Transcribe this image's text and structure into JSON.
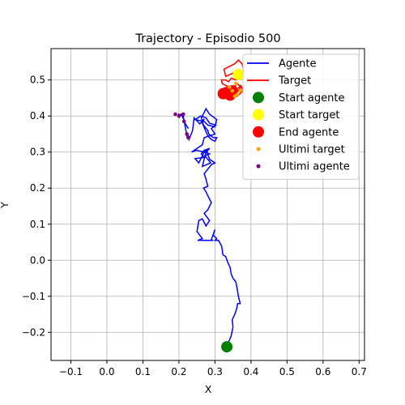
{
  "chart_data": {
    "type": "line",
    "title": "Trajectory - Episodio 500",
    "xlabel": "X",
    "ylabel": "Y",
    "xlim": [
      -0.155,
      0.715
    ],
    "ylim": [
      -0.278,
      0.587
    ],
    "xticks": [
      -0.1,
      0.0,
      0.1,
      0.2,
      0.3,
      0.4,
      0.5,
      0.6,
      0.7
    ],
    "xtick_labels": [
      "−0.1",
      "0.0",
      "0.1",
      "0.2",
      "0.3",
      "0.4",
      "0.5",
      "0.6",
      "0.7"
    ],
    "yticks": [
      -0.2,
      -0.1,
      0.0,
      0.1,
      0.2,
      0.3,
      0.4,
      0.5
    ],
    "ytick_labels": [
      "−0.2",
      "−0.1",
      "0.0",
      "0.1",
      "0.2",
      "0.3",
      "0.4",
      "0.5"
    ],
    "grid": true,
    "legend_position": "top-right",
    "series": [
      {
        "name": "Agente",
        "kind": "line",
        "color": "#0000ff",
        "x": [
          0.333,
          0.345,
          0.35,
          0.348,
          0.355,
          0.36,
          0.363,
          0.37,
          0.365,
          0.362,
          0.358,
          0.35,
          0.345,
          0.342,
          0.335,
          0.33,
          0.322,
          0.32,
          0.318,
          0.31,
          0.3,
          0.305,
          0.295,
          0.3,
          0.29,
          0.295,
          0.27,
          0.252,
          0.265,
          0.25,
          0.255,
          0.265,
          0.275,
          0.285,
          0.27,
          0.28,
          0.29,
          0.282,
          0.275,
          0.268,
          0.28,
          0.275,
          0.27,
          0.29,
          0.3,
          0.285,
          0.278,
          0.282,
          0.27,
          0.285,
          0.272,
          0.288,
          0.265,
          0.275,
          0.285,
          0.27,
          0.262,
          0.27,
          0.245,
          0.255,
          0.27,
          0.248,
          0.235,
          0.25,
          0.265,
          0.27,
          0.3,
          0.29,
          0.302,
          0.285,
          0.275,
          0.26,
          0.245,
          0.27,
          0.28,
          0.3,
          0.305,
          0.285,
          0.275,
          0.27,
          0.262,
          0.268,
          0.28,
          0.283,
          0.295,
          0.305,
          0.3,
          0.29,
          0.28,
          0.265,
          0.27,
          0.258,
          0.242,
          0.238,
          0.23,
          0.228,
          0.226,
          0.224,
          0.222,
          0.214,
          0.206,
          0.202,
          0.2,
          0.212,
          0.214,
          0.226
        ],
        "y": [
          -0.238,
          -0.21,
          -0.185,
          -0.165,
          -0.15,
          -0.135,
          -0.12,
          -0.12,
          -0.1,
          -0.082,
          -0.06,
          -0.05,
          -0.038,
          -0.02,
          -0.005,
          0.01,
          0.015,
          0.03,
          0.04,
          0.055,
          0.055,
          0.06,
          0.07,
          0.085,
          0.057,
          0.055,
          0.055,
          0.055,
          0.06,
          0.08,
          0.11,
          0.115,
          0.095,
          0.11,
          0.13,
          0.14,
          0.16,
          0.175,
          0.19,
          0.2,
          0.205,
          0.225,
          0.24,
          0.265,
          0.27,
          0.28,
          0.3,
          0.31,
          0.3,
          0.295,
          0.29,
          0.27,
          0.26,
          0.3,
          0.31,
          0.305,
          0.295,
          0.285,
          0.282,
          0.27,
          0.3,
          0.305,
          0.3,
          0.31,
          0.32,
          0.34,
          0.35,
          0.365,
          0.375,
          0.38,
          0.395,
          0.4,
          0.39,
          0.385,
          0.375,
          0.37,
          0.39,
          0.405,
          0.42,
          0.41,
          0.395,
          0.375,
          0.36,
          0.35,
          0.34,
          0.34,
          0.33,
          0.335,
          0.345,
          0.38,
          0.392,
          0.378,
          0.395,
          0.36,
          0.34,
          0.335,
          0.345,
          0.35,
          0.345,
          0.39,
          0.405,
          0.398,
          0.405,
          0.4,
          0.385,
          0.365
        ]
      },
      {
        "name": "Target",
        "kind": "line",
        "color": "#ff0000",
        "x": [
          0.365,
          0.352,
          0.33,
          0.325,
          0.345,
          0.355,
          0.365,
          0.375,
          0.38,
          0.37,
          0.358,
          0.345,
          0.338,
          0.33,
          0.318,
          0.32,
          0.34,
          0.352,
          0.362,
          0.372,
          0.378,
          0.362,
          0.35,
          0.355,
          0.34,
          0.328,
          0.318,
          0.325,
          0.34,
          0.352,
          0.362,
          0.372,
          0.36,
          0.348,
          0.34,
          0.348,
          0.36
        ],
        "y": [
          0.515,
          0.52,
          0.51,
          0.53,
          0.54,
          0.545,
          0.555,
          0.545,
          0.525,
          0.505,
          0.5,
          0.505,
          0.495,
          0.5,
          0.5,
          0.49,
          0.48,
          0.47,
          0.475,
          0.485,
          0.47,
          0.455,
          0.46,
          0.47,
          0.465,
          0.45,
          0.455,
          0.47,
          0.48,
          0.48,
          0.49,
          0.48,
          0.465,
          0.47,
          0.46,
          0.45,
          0.455
        ]
      },
      {
        "name": "Start agente",
        "kind": "marker",
        "color": "#008000",
        "x": [
          0.333
        ],
        "y": [
          -0.24
        ]
      },
      {
        "name": "Start target",
        "kind": "marker",
        "color": "#ffff00",
        "x": [
          0.365
        ],
        "y": [
          0.515
        ]
      },
      {
        "name": "End agente",
        "kind": "marker",
        "color": "#ff0000",
        "x": [
          0.332,
          0.323,
          0.348,
          0.342
        ],
        "y": [
          0.465,
          0.462,
          0.47,
          0.458
        ]
      },
      {
        "name": "Ultimi target",
        "kind": "scatter",
        "color": "#ffa500",
        "x": [
          0.355,
          0.362,
          0.37,
          0.348,
          0.34,
          0.358
        ],
        "y": [
          0.455,
          0.46,
          0.47,
          0.47,
          0.48,
          0.49
        ]
      },
      {
        "name": "Ultimi agente",
        "kind": "scatter",
        "color": "#800080",
        "x": [
          0.19,
          0.2,
          0.212,
          0.214,
          0.222,
          0.226
        ],
        "y": [
          0.405,
          0.4,
          0.405,
          0.385,
          0.35,
          0.34
        ]
      }
    ]
  }
}
